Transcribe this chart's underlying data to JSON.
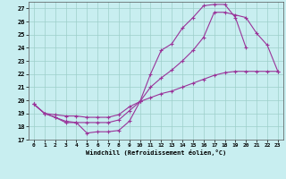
{
  "xlabel": "Windchill (Refroidissement éolien,°C)",
  "xlim": [
    -0.5,
    23.5
  ],
  "ylim": [
    17,
    27.5
  ],
  "yticks": [
    17,
    18,
    19,
    20,
    21,
    22,
    23,
    24,
    25,
    26,
    27
  ],
  "xticks": [
    0,
    1,
    2,
    3,
    4,
    5,
    6,
    7,
    8,
    9,
    10,
    11,
    12,
    13,
    14,
    15,
    16,
    17,
    18,
    19,
    20,
    21,
    22,
    23
  ],
  "bg_color": "#c8eef0",
  "grid_color": "#9dcfca",
  "line_color": "#993399",
  "curve1_x": [
    0,
    1,
    2,
    3,
    4,
    5,
    6,
    7,
    8,
    9,
    10,
    11,
    12,
    13,
    14,
    15,
    16,
    17,
    18,
    19,
    20
  ],
  "curve1_y": [
    19.7,
    19.0,
    18.7,
    18.3,
    18.3,
    17.5,
    17.6,
    17.6,
    17.7,
    18.4,
    19.9,
    22.0,
    23.8,
    24.3,
    25.5,
    26.3,
    27.2,
    27.3,
    27.3,
    26.3,
    24.0
  ],
  "curve2_x": [
    0,
    1,
    2,
    3,
    4,
    5,
    6,
    7,
    8,
    9,
    10,
    11,
    12,
    13,
    14,
    15,
    16,
    17,
    18,
    19,
    20,
    21,
    22,
    23
  ],
  "curve2_y": [
    19.7,
    19.0,
    18.7,
    18.4,
    18.3,
    18.3,
    18.3,
    18.3,
    18.5,
    19.2,
    19.9,
    21.0,
    21.7,
    22.3,
    23.0,
    23.8,
    24.8,
    26.7,
    26.7,
    26.5,
    26.3,
    25.1,
    24.2,
    22.2
  ],
  "curve3_x": [
    0,
    1,
    2,
    3,
    4,
    5,
    6,
    7,
    8,
    9,
    10,
    11,
    12,
    13,
    14,
    15,
    16,
    17,
    18,
    19,
    20,
    21,
    22,
    23
  ],
  "curve3_y": [
    19.7,
    19.0,
    18.9,
    18.8,
    18.8,
    18.7,
    18.7,
    18.7,
    18.9,
    19.5,
    19.9,
    20.2,
    20.5,
    20.7,
    21.0,
    21.3,
    21.6,
    21.9,
    22.1,
    22.2,
    22.2,
    22.2,
    22.2,
    22.2
  ]
}
